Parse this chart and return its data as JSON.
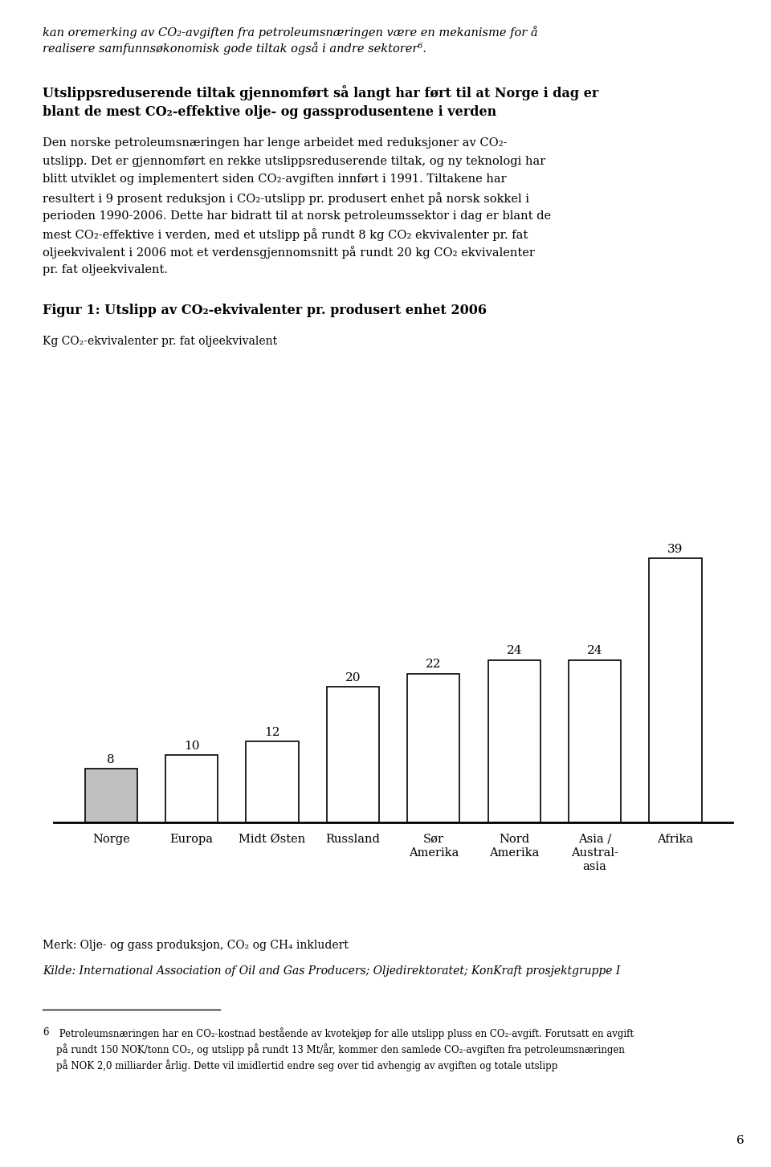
{
  "page_top_italic_text_line1": "kan oremerking av CO₂-avgiften fra petroleumsnæringen være en mekanisme for å",
  "page_top_italic_text_line2": "realisere samfunnsøkonomisk gode tiltak også i andre sektorer⁶.",
  "section_bold_title_line1": "Utslippsreduserende tiltak gjennomført så langt har ført til at Norge i dag er",
  "section_bold_title_line2": "blant de mest CO₂-effektive olje- og gassprodusentene i verden",
  "body_lines": [
    "Den norske petroleumsnæringen har lenge arbeidet med reduksjoner av CO₂-",
    "utslipp. Det er gjennomført en rekke utslippsreduserende tiltak, og ny teknologi har",
    "blitt utviklet og implementert siden CO₂-avgiften innført i 1991. Tiltakene har",
    "resultert i 9 prosent reduksjon i CO₂-utslipp pr. produsert enhet på norsk sokkel i",
    "perioden 1990-2006. Dette har bidratt til at norsk petroleumssektor i dag er blant de",
    "mest CO₂-effektive i verden, med et utslipp på rundt 8 kg CO₂ ekvivalenter pr. fat",
    "oljeekvivalent i 2006 mot et verdensgjennomsnitt på rundt 20 kg CO₂ ekvivalenter",
    "pr. fat oljeekvivalent."
  ],
  "figure_title": "Figur 1: Utslipp av CO₂-ekvivalenter pr. produsert enhet 2006",
  "ylabel": "Kg CO₂-ekvivalenter pr. fat oljeekvivalent",
  "values": [
    8,
    10,
    12,
    20,
    22,
    24,
    24,
    39
  ],
  "bar_labels": [
    "8",
    "10",
    "12",
    "20",
    "22",
    "24",
    "24",
    "39"
  ],
  "bar_colors": [
    "#c0c0c0",
    "#ffffff",
    "#ffffff",
    "#ffffff",
    "#ffffff",
    "#ffffff",
    "#ffffff",
    "#ffffff"
  ],
  "bar_edgecolor": "#000000",
  "xlabels": [
    "Norge",
    "Europa",
    "Midt Østen",
    "Russland",
    "Sør\nAmerika",
    "Nord\nAmerika",
    "Asia /\nAustral-\nasia",
    "Afrika"
  ],
  "merk_text": "Merk: Olje- og gass produksjon, CO₂ og CH₄ inkludert",
  "kilde_text": "Kilde: International Association of Oil and Gas Producers; Oljedirektoratet; KonKraft prosjektgruppe I",
  "footnote_number": "6",
  "footnote_text": " Petroleumsnæringen har en CO₂-kostnad bestående av kvotekjøp for alle utslipp pluss en CO₂-avgift. Forutsatt en avgift\npå rundt 150 NOK/tonn CO₂, og utslipp på rundt 13 Mt/år, kommer den samlede CO₂-avgiften fra petroleumsnæringen\npå NOK 2,0 milliarder årlig. Dette vil imidlertid endre seg over tid avhengig av avgiften og totale utslipp",
  "page_number": "6",
  "background_color": "#ffffff",
  "text_color": "#000000",
  "ylim": [
    0,
    43
  ]
}
